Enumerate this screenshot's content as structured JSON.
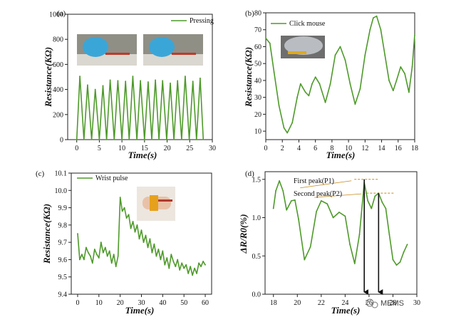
{
  "colors": {
    "series": "#4e9a2a",
    "axis": "#222222",
    "arrow": "#111111",
    "guide": "#c58a1a"
  },
  "watermark": "MEMS",
  "chart_data": [
    {
      "type": "line",
      "panel_label": "(a)",
      "legend": [
        "Pressing"
      ],
      "xlabel": "Time(s)",
      "ylabel": "Resistance(KΩ)",
      "xlim": [
        -2,
        30
      ],
      "ylim": [
        0,
        1000
      ],
      "xticks": [
        0,
        5,
        10,
        15,
        20,
        25,
        30
      ],
      "yticks": [
        0,
        200,
        400,
        600,
        800,
        1000
      ],
      "inset": "photos of finger pressing sensor",
      "series": [
        {
          "x": [
            0,
            0.7,
            1.6,
            2.4,
            3.3,
            4.1,
            5.0,
            5.8,
            6.6,
            7.4,
            8.3,
            9.1,
            10.0,
            10.8,
            11.6,
            12.4,
            13.3,
            14.1,
            15.0,
            15.8,
            16.6,
            17.4,
            18.2,
            19.0,
            19.9,
            20.7,
            21.5,
            22.3,
            23.2,
            24.0,
            24.9,
            25.7,
            26.5,
            27.3,
            28.0
          ],
          "y": [
            0,
            505,
            0,
            435,
            0,
            400,
            0,
            430,
            0,
            475,
            0,
            470,
            0,
            465,
            0,
            505,
            0,
            470,
            0,
            460,
            0,
            475,
            0,
            470,
            0,
            450,
            0,
            470,
            0,
            505,
            0,
            465,
            0,
            490,
            0
          ]
        }
      ]
    },
    {
      "type": "line",
      "panel_label": "(b)",
      "legend": [
        "Click mouse"
      ],
      "xlabel": "Time(s)",
      "ylabel": "Resistance(KΩ)",
      "xlim": [
        0,
        18
      ],
      "ylim": [
        5,
        80
      ],
      "xticks": [
        0,
        2,
        4,
        6,
        8,
        10,
        12,
        14,
        16,
        18
      ],
      "yticks": [
        10,
        20,
        30,
        40,
        50,
        60,
        70,
        80
      ],
      "inset": "photo of computer mouse with sensor",
      "series": [
        {
          "x": [
            0,
            0.5,
            1.0,
            1.6,
            2.2,
            2.6,
            3.2,
            3.8,
            4.2,
            4.8,
            5.2,
            5.6,
            6.0,
            6.5,
            7.2,
            7.8,
            8.4,
            9.0,
            9.6,
            10.2,
            10.8,
            11.4,
            12.0,
            12.6,
            13.0,
            13.4,
            13.9,
            14.4,
            14.9,
            15.4,
            15.8,
            16.3,
            16.8,
            17.3,
            17.7,
            18.0
          ],
          "y": [
            65,
            62,
            45,
            25,
            12,
            9,
            15,
            30,
            38,
            33,
            31,
            38,
            42,
            38,
            27,
            38,
            55,
            60,
            52,
            38,
            26,
            35,
            55,
            70,
            77,
            78,
            70,
            55,
            40,
            34,
            40,
            48,
            44,
            33,
            48,
            67
          ]
        }
      ]
    },
    {
      "type": "line",
      "panel_label": "(c)",
      "legend": [
        "Wrist pulse"
      ],
      "xlabel": "Time(s)",
      "ylabel": "Resistance(KΩ)",
      "xlim": [
        -3,
        63
      ],
      "ylim": [
        9.4,
        10.1
      ],
      "xticks": [
        0,
        10,
        20,
        30,
        40,
        50,
        60
      ],
      "yticks": [
        9.4,
        9.5,
        9.6,
        9.7,
        9.8,
        9.9,
        10.0,
        10.1
      ],
      "inset": "photo of sensor on wrist",
      "series": [
        {
          "x": [
            0,
            1,
            2,
            3,
            4,
            5,
            6,
            7,
            8,
            9,
            10,
            11,
            12,
            13,
            14,
            15,
            16,
            17,
            18,
            19,
            20,
            21,
            22,
            23,
            24,
            25,
            26,
            27,
            28,
            29,
            30,
            31,
            32,
            33,
            34,
            35,
            36,
            37,
            38,
            39,
            40,
            41,
            42,
            43,
            44,
            45,
            46,
            47,
            48,
            49,
            50,
            51,
            52,
            53,
            54,
            55,
            56,
            57,
            58,
            59,
            60
          ],
          "y": [
            9.75,
            9.6,
            9.63,
            9.6,
            9.67,
            9.64,
            9.62,
            9.58,
            9.66,
            9.63,
            9.61,
            9.7,
            9.64,
            9.67,
            9.62,
            9.65,
            9.58,
            9.63,
            9.56,
            9.62,
            9.96,
            9.88,
            9.9,
            9.84,
            9.86,
            9.78,
            9.82,
            9.76,
            9.8,
            9.72,
            9.77,
            9.7,
            9.74,
            9.67,
            9.72,
            9.64,
            9.69,
            9.62,
            9.66,
            9.6,
            9.65,
            9.57,
            9.61,
            9.55,
            9.63,
            9.59,
            9.56,
            9.6,
            9.54,
            9.58,
            9.55,
            9.57,
            9.52,
            9.56,
            9.51,
            9.55,
            9.52,
            9.58,
            9.56,
            9.59,
            9.57
          ]
        }
      ]
    },
    {
      "type": "line",
      "panel_label": "(d)",
      "xlabel": "Time(s)",
      "ylabel": "ΔR/R0(%)",
      "xlim": [
        17.3,
        30
      ],
      "ylim": [
        0,
        1.6
      ],
      "xticks": [
        18,
        20,
        22,
        24,
        26,
        28,
        30
      ],
      "yticks": [
        0.0,
        0.5,
        1.0,
        1.5
      ],
      "annotations": [
        "First peak(P1)",
        "Second peak(P2)"
      ],
      "series": [
        {
          "x": [
            18.0,
            18.2,
            18.5,
            18.8,
            19.1,
            19.5,
            19.8,
            20.1,
            20.6,
            21.1,
            21.6,
            22.0,
            22.5,
            23.0,
            23.5,
            24.0,
            24.4,
            24.8,
            25.2,
            25.6,
            25.9,
            26.2,
            26.5,
            26.8,
            27.1,
            27.4,
            27.7,
            28.0,
            28.3,
            28.6,
            28.9,
            29.2
          ],
          "y": [
            1.12,
            1.35,
            1.48,
            1.35,
            1.1,
            1.22,
            1.23,
            0.98,
            0.45,
            0.62,
            1.08,
            1.22,
            1.18,
            1.0,
            1.07,
            1.02,
            0.65,
            0.4,
            0.78,
            1.46,
            1.22,
            1.12,
            1.28,
            1.32,
            1.2,
            1.12,
            0.78,
            0.45,
            0.38,
            0.42,
            0.55,
            0.65
          ]
        }
      ]
    }
  ]
}
